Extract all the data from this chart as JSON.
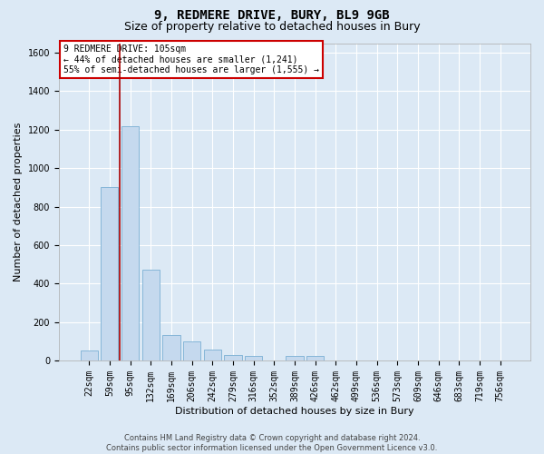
{
  "title": "9, REDMERE DRIVE, BURY, BL9 9GB",
  "subtitle": "Size of property relative to detached houses in Bury",
  "xlabel": "Distribution of detached houses by size in Bury",
  "ylabel": "Number of detached properties",
  "bar_color": "#c5d9ee",
  "bar_edge_color": "#7aafd4",
  "bg_color": "#dce9f5",
  "grid_color": "#ffffff",
  "annotation_text": "9 REDMERE DRIVE: 105sqm\n← 44% of detached houses are smaller (1,241)\n55% of semi-detached houses are larger (1,555) →",
  "vline_color": "#aa0000",
  "categories": [
    "22sqm",
    "59sqm",
    "95sqm",
    "132sqm",
    "169sqm",
    "206sqm",
    "242sqm",
    "279sqm",
    "316sqm",
    "352sqm",
    "389sqm",
    "426sqm",
    "462sqm",
    "499sqm",
    "536sqm",
    "573sqm",
    "609sqm",
    "646sqm",
    "683sqm",
    "719sqm",
    "756sqm"
  ],
  "bar_heights": [
    50,
    900,
    1220,
    470,
    130,
    100,
    55,
    30,
    25,
    0,
    25,
    25,
    0,
    0,
    0,
    0,
    0,
    0,
    0,
    0,
    0
  ],
  "ylim": [
    0,
    1650
  ],
  "yticks": [
    0,
    200,
    400,
    600,
    800,
    1000,
    1200,
    1400,
    1600
  ],
  "footer_text": "Contains HM Land Registry data © Crown copyright and database right 2024.\nContains public sector information licensed under the Open Government Licence v3.0.",
  "annotation_box_color": "#ffffff",
  "annotation_box_edge": "#cc0000",
  "title_fontsize": 10,
  "subtitle_fontsize": 9,
  "axis_label_fontsize": 8,
  "tick_fontsize": 7,
  "footer_fontsize": 6
}
